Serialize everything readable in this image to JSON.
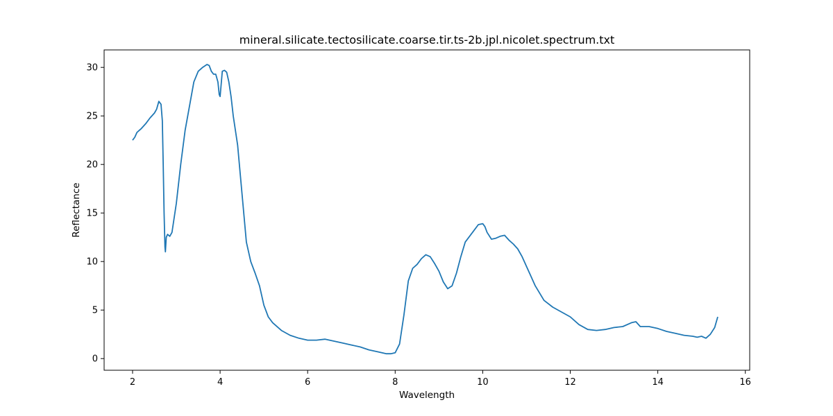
{
  "chart_data": {
    "type": "line",
    "title": "mineral.silicate.tectosilicate.coarse.tir.ts-2b.jpl.nicolet.spectrum.txt",
    "xlabel": "Wavelength",
    "ylabel": "Reflectance",
    "xlim": [
      1.35,
      16.1
    ],
    "ylim": [
      -1.2,
      31.8
    ],
    "xticks": [
      2,
      4,
      6,
      8,
      10,
      12,
      14,
      16
    ],
    "yticks": [
      0,
      5,
      10,
      15,
      20,
      25,
      30
    ],
    "grid": false,
    "series_color": "#1f77b4",
    "series": [
      {
        "x": [
          2.0,
          2.05,
          2.1,
          2.15,
          2.2,
          2.3,
          2.4,
          2.5,
          2.55,
          2.6,
          2.65,
          2.68,
          2.7,
          2.72,
          2.74,
          2.75,
          2.77,
          2.8,
          2.85,
          2.9,
          3.0,
          3.1,
          3.2,
          3.3,
          3.4,
          3.5,
          3.6,
          3.7,
          3.75,
          3.8,
          3.85,
          3.9,
          3.95,
          3.98,
          4.0,
          4.05,
          4.1,
          4.15,
          4.2,
          4.25,
          4.3,
          4.4,
          4.5,
          4.6,
          4.7,
          4.8,
          4.9,
          5.0,
          5.1,
          5.2,
          5.4,
          5.6,
          5.8,
          6.0,
          6.2,
          6.4,
          6.6,
          6.8,
          7.0,
          7.2,
          7.4,
          7.6,
          7.8,
          7.9,
          8.0,
          8.1,
          8.2,
          8.3,
          8.4,
          8.5,
          8.6,
          8.7,
          8.8,
          8.9,
          9.0,
          9.1,
          9.2,
          9.3,
          9.4,
          9.5,
          9.6,
          9.7,
          9.8,
          9.9,
          10.0,
          10.05,
          10.1,
          10.2,
          10.3,
          10.4,
          10.5,
          10.6,
          10.7,
          10.8,
          10.9,
          11.0,
          11.2,
          11.4,
          11.6,
          11.8,
          12.0,
          12.2,
          12.4,
          12.6,
          12.8,
          13.0,
          13.2,
          13.4,
          13.5,
          13.6,
          13.8,
          14.0,
          14.2,
          14.4,
          14.6,
          14.8,
          14.9,
          15.0,
          15.1,
          15.2,
          15.3,
          15.37
        ],
        "y": [
          22.5,
          22.8,
          23.3,
          23.5,
          23.7,
          24.2,
          24.8,
          25.3,
          25.7,
          26.5,
          26.2,
          24.5,
          20.0,
          15.0,
          11.5,
          11.0,
          12.5,
          12.8,
          12.6,
          13.0,
          16.0,
          20.0,
          23.5,
          26.0,
          28.5,
          29.6,
          30.0,
          30.3,
          30.2,
          29.6,
          29.3,
          29.3,
          28.5,
          27.2,
          27.0,
          29.6,
          29.7,
          29.5,
          28.5,
          27.0,
          25.0,
          22.0,
          17.0,
          12.0,
          10.0,
          8.8,
          7.5,
          5.5,
          4.3,
          3.7,
          2.9,
          2.4,
          2.1,
          1.9,
          1.9,
          2.0,
          1.8,
          1.6,
          1.4,
          1.2,
          0.9,
          0.7,
          0.5,
          0.5,
          0.6,
          1.5,
          4.5,
          8.0,
          9.3,
          9.7,
          10.3,
          10.7,
          10.5,
          9.8,
          9.0,
          7.9,
          7.2,
          7.5,
          8.8,
          10.5,
          12.0,
          12.6,
          13.2,
          13.8,
          13.9,
          13.6,
          13.0,
          12.3,
          12.4,
          12.6,
          12.7,
          12.2,
          11.8,
          11.3,
          10.5,
          9.5,
          7.5,
          6.0,
          5.3,
          4.8,
          4.3,
          3.5,
          3.0,
          2.9,
          3.0,
          3.2,
          3.3,
          3.7,
          3.8,
          3.3,
          3.3,
          3.1,
          2.8,
          2.6,
          2.4,
          2.3,
          2.2,
          2.3,
          2.1,
          2.5,
          3.2,
          4.3
        ]
      }
    ]
  }
}
